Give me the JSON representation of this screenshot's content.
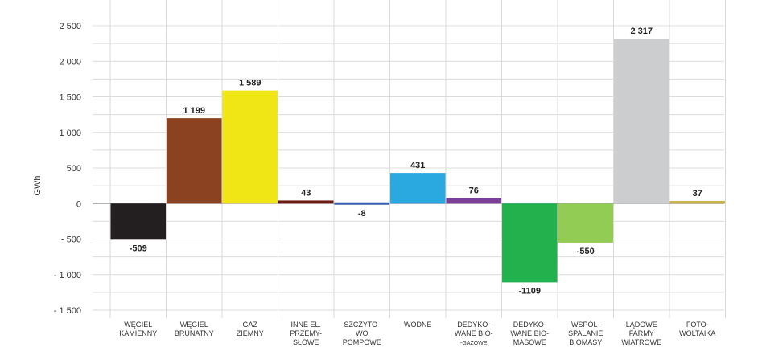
{
  "chart_data": {
    "type": "bar",
    "ylabel": "GWh",
    "xlabel": "",
    "ylim": [
      -1500,
      2500
    ],
    "yticks": [
      2500,
      2000,
      1500,
      1000,
      500,
      0,
      -500,
      -1000,
      -1500
    ],
    "ytick_labels": [
      "2 500",
      "2 000",
      "1 500",
      "1 000",
      "500",
      "0",
      "- 500",
      "- 1 000",
      "- 1 500"
    ],
    "grid": true,
    "categories": [
      [
        "WĘGIEL",
        "KAMIENNY"
      ],
      [
        "WĘGIEL",
        "BRUNATNY"
      ],
      [
        "GAZ",
        "ZIEMNY"
      ],
      [
        "INNE EL.",
        "PRZEMY-",
        "SŁOWE"
      ],
      [
        "SZCZYTO-",
        "WO",
        "POMPOWE"
      ],
      [
        "WODNE"
      ],
      [
        "DEDYKO-",
        "WANE BIO-",
        "-GAZOWE"
      ],
      [
        "DEDYKO-",
        "WANE BIO-",
        "MASOWE"
      ],
      [
        "WSPÓŁ-",
        "SPALANIE",
        "BIOMASY"
      ],
      [
        "LĄDOWE",
        "FARMY",
        "WIATROWE"
      ],
      [
        "FOTO-",
        "WOLTAIKA"
      ]
    ],
    "values": [
      -509,
      1199,
      1589,
      43,
      -8,
      431,
      76,
      -1109,
      -550,
      2317,
      37
    ],
    "value_labels": [
      "-509",
      "1 199",
      "1 589",
      "43",
      "-8",
      "431",
      "76",
      "-1109",
      "-550",
      "2 317",
      "37"
    ],
    "colors": [
      "#231f20",
      "#8b4220",
      "#f0e616",
      "#6d1a14",
      "#3b5ea8",
      "#2aa8e0",
      "#7a3f98",
      "#22b14c",
      "#92cc55",
      "#cccdcf",
      "#c9b44a"
    ]
  }
}
